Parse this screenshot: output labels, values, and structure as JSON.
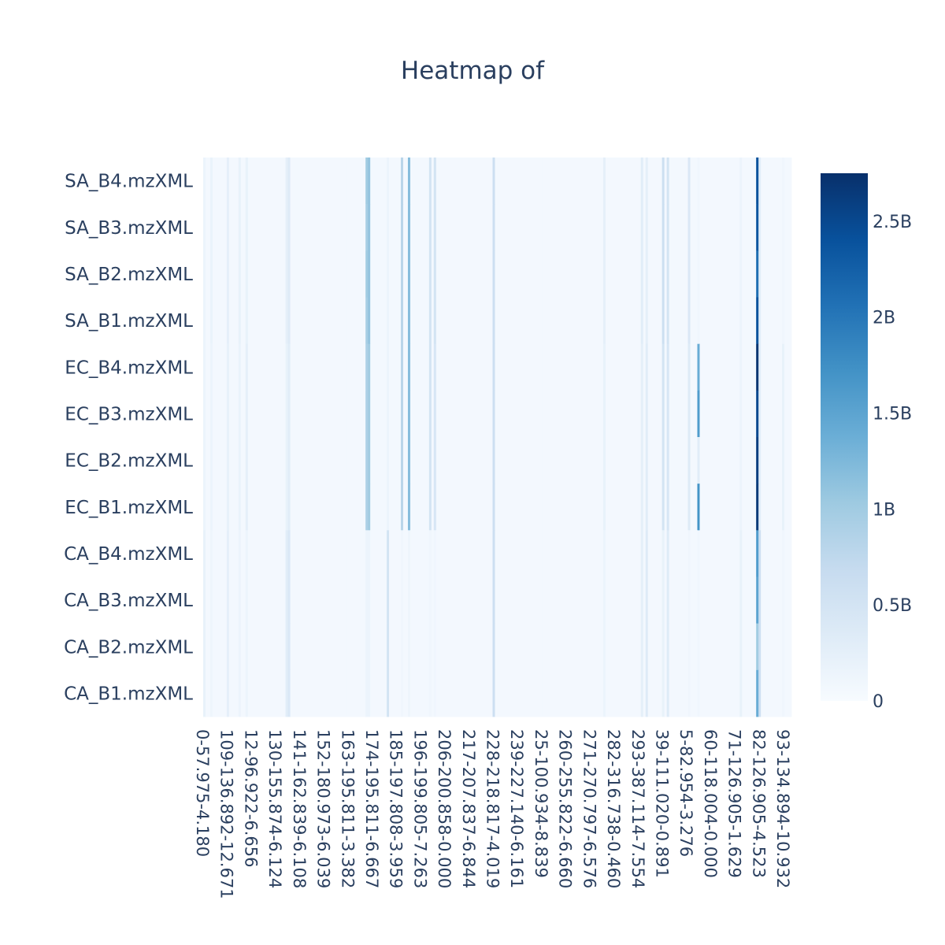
{
  "chart_data": {
    "type": "heatmap",
    "title": "Heatmap of",
    "colorscale": "Blues",
    "colorscale_stops": [
      "#f7fbff",
      "#deebf7",
      "#c6dbef",
      "#9ecae1",
      "#6baed6",
      "#4292c6",
      "#2171b5",
      "#08519c",
      "#08306b"
    ],
    "zrange": [
      0,
      2750000000
    ],
    "colorbar_ticks": [
      {
        "value": 0,
        "label": "0"
      },
      {
        "value": 500000000,
        "label": "0.5B"
      },
      {
        "value": 1000000000,
        "label": "1B"
      },
      {
        "value": 1500000000,
        "label": "1.5B"
      },
      {
        "value": 2000000000,
        "label": "2B"
      },
      {
        "value": 2500000000,
        "label": "2.5B"
      }
    ],
    "rows": [
      "SA_B4.mzXML",
      "SA_B3.mzXML",
      "SA_B2.mzXML",
      "SA_B1.mzXML",
      "EC_B4.mzXML",
      "EC_B3.mzXML",
      "EC_B2.mzXML",
      "EC_B1.mzXML",
      "CA_B4.mzXML",
      "CA_B3.mzXML",
      "CA_B2.mzXML",
      "CA_B1.mzXML"
    ],
    "x_tick_labels": [
      "0-57.975-4.180",
      "109-136.892-12.671",
      "12-96.922-6.656",
      "130-155.874-6.124",
      "141-162.839-6.108",
      "152-180.973-6.039",
      "163-195.811-3.382",
      "174-195.811-6.667",
      "185-197.808-3.959",
      "196-199.805-7.263",
      "206-200.858-0.000",
      "217-207.837-6.844",
      "228-218.817-4.019",
      "239-227.140-6.161",
      "25-100.934-8.839",
      "260-255.822-6.660",
      "271-270.797-6.576",
      "282-316.738-0.460",
      "293-387.114-7.554",
      "39-111.020-0.891",
      "5-82.954-3.276",
      "60-118.004-0.000",
      "71-126.905-1.629",
      "82-126.905-4.523",
      "93-134.894-10.932"
    ],
    "n_features": 250,
    "baseline_value": 60000000,
    "hot_features": [
      {
        "col": 0,
        "values": [
          150000000,
          150000000,
          150000000,
          150000000,
          150000000,
          150000000,
          150000000,
          150000000,
          200000000,
          200000000,
          200000000,
          200000000
        ]
      },
      {
        "col": 3,
        "values": [
          180000000,
          180000000,
          180000000,
          180000000,
          150000000,
          150000000,
          150000000,
          150000000,
          120000000,
          120000000,
          120000000,
          120000000
        ]
      },
      {
        "col": 10,
        "values": [
          250000000,
          250000000,
          250000000,
          250000000,
          220000000,
          220000000,
          220000000,
          220000000,
          250000000,
          250000000,
          250000000,
          250000000
        ]
      },
      {
        "col": 15,
        "values": [
          200000000,
          200000000,
          200000000,
          200000000,
          180000000,
          180000000,
          180000000,
          180000000,
          150000000,
          150000000,
          150000000,
          150000000
        ]
      },
      {
        "col": 18,
        "values": [
          200000000,
          200000000,
          200000000,
          200000000,
          250000000,
          250000000,
          250000000,
          250000000,
          150000000,
          150000000,
          150000000,
          150000000
        ]
      },
      {
        "col": 35,
        "values": [
          250000000,
          250000000,
          250000000,
          250000000,
          200000000,
          200000000,
          200000000,
          200000000,
          300000000,
          300000000,
          300000000,
          300000000
        ]
      },
      {
        "col": 36,
        "values": [
          350000000,
          350000000,
          350000000,
          350000000,
          300000000,
          300000000,
          300000000,
          300000000,
          400000000,
          400000000,
          400000000,
          400000000
        ]
      },
      {
        "col": 69,
        "values": [
          1000000000,
          950000000,
          1000000000,
          950000000,
          900000000,
          900000000,
          900000000,
          900000000,
          150000000,
          150000000,
          150000000,
          150000000
        ]
      },
      {
        "col": 70,
        "values": [
          1100000000,
          1100000000,
          1100000000,
          1100000000,
          1000000000,
          1000000000,
          1000000000,
          1000000000,
          150000000,
          150000000,
          150000000,
          150000000
        ]
      },
      {
        "col": 78,
        "values": [
          150000000,
          150000000,
          150000000,
          150000000,
          150000000,
          150000000,
          150000000,
          150000000,
          500000000,
          500000000,
          500000000,
          500000000
        ]
      },
      {
        "col": 84,
        "values": [
          800000000,
          800000000,
          800000000,
          800000000,
          800000000,
          800000000,
          800000000,
          800000000,
          100000000,
          100000000,
          100000000,
          100000000
        ]
      },
      {
        "col": 87,
        "values": [
          1200000000,
          1200000000,
          1200000000,
          1200000000,
          1200000000,
          1200000000,
          1200000000,
          1200000000,
          120000000,
          120000000,
          120000000,
          120000000
        ]
      },
      {
        "col": 96,
        "values": [
          500000000,
          500000000,
          500000000,
          500000000,
          500000000,
          500000000,
          500000000,
          500000000,
          100000000,
          100000000,
          100000000,
          100000000
        ]
      },
      {
        "col": 98,
        "values": [
          500000000,
          500000000,
          500000000,
          500000000,
          450000000,
          450000000,
          450000000,
          450000000,
          100000000,
          100000000,
          100000000,
          100000000
        ]
      },
      {
        "col": 123,
        "values": [
          600000000,
          600000000,
          600000000,
          600000000,
          600000000,
          600000000,
          600000000,
          600000000,
          600000000,
          600000000,
          600000000,
          600000000
        ]
      },
      {
        "col": 170,
        "values": [
          250000000,
          250000000,
          250000000,
          250000000,
          200000000,
          200000000,
          200000000,
          200000000,
          150000000,
          150000000,
          150000000,
          150000000
        ]
      },
      {
        "col": 186,
        "values": [
          300000000,
          300000000,
          300000000,
          300000000,
          250000000,
          250000000,
          250000000,
          250000000,
          250000000,
          250000000,
          250000000,
          250000000
        ]
      },
      {
        "col": 188,
        "values": [
          250000000,
          250000000,
          250000000,
          250000000,
          300000000,
          300000000,
          300000000,
          300000000,
          350000000,
          350000000,
          350000000,
          350000000
        ]
      },
      {
        "col": 195,
        "values": [
          600000000,
          600000000,
          600000000,
          600000000,
          500000000,
          500000000,
          500000000,
          500000000,
          200000000,
          200000000,
          200000000,
          200000000
        ]
      },
      {
        "col": 197,
        "values": [
          500000000,
          500000000,
          500000000,
          500000000,
          450000000,
          450000000,
          450000000,
          450000000,
          350000000,
          350000000,
          350000000,
          350000000
        ]
      },
      {
        "col": 206,
        "values": [
          400000000,
          400000000,
          400000000,
          400000000,
          350000000,
          350000000,
          350000000,
          350000000,
          100000000,
          100000000,
          100000000,
          100000000
        ]
      },
      {
        "col": 210,
        "values": [
          100000000,
          100000000,
          100000000,
          100000000,
          1400000000,
          1600000000,
          300000000,
          1700000000,
          100000000,
          100000000,
          100000000,
          100000000
        ]
      },
      {
        "col": 228,
        "values": [
          150000000,
          150000000,
          150000000,
          150000000,
          150000000,
          150000000,
          150000000,
          150000000,
          200000000,
          200000000,
          200000000,
          200000000
        ]
      },
      {
        "col": 235,
        "values": [
          2400000000,
          2350000000,
          2100000000,
          2400000000,
          2700000000,
          2500000000,
          2600000000,
          2650000000,
          1600000000,
          1500000000,
          1000000000,
          1400000000
        ]
      },
      {
        "col": 236,
        "values": [
          300000000,
          300000000,
          300000000,
          300000000,
          300000000,
          300000000,
          300000000,
          300000000,
          600000000,
          600000000,
          600000000,
          600000000
        ]
      },
      {
        "col": 246,
        "values": [
          100000000,
          100000000,
          100000000,
          100000000,
          200000000,
          200000000,
          200000000,
          200000000,
          100000000,
          100000000,
          100000000,
          100000000
        ]
      }
    ]
  }
}
